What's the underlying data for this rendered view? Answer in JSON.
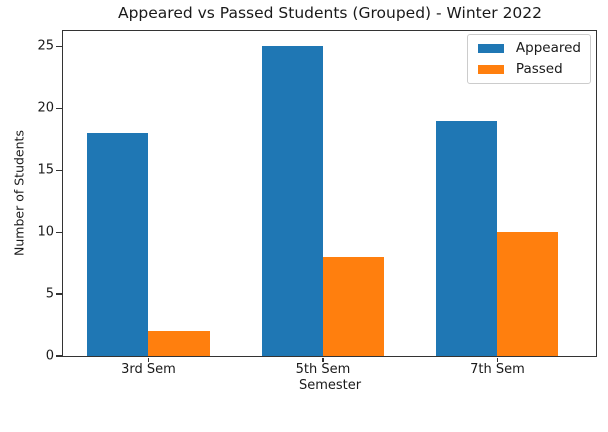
{
  "chart_data": {
    "type": "bar",
    "title": "Appeared vs Passed Students (Grouped) - Winter 2022",
    "xlabel": "Semester",
    "ylabel": "Number of Students",
    "categories": [
      "3rd Sem",
      "5th Sem",
      "7th Sem"
    ],
    "series": [
      {
        "name": "Appeared",
        "color": "#1f77b4",
        "values": [
          18,
          25,
          19
        ]
      },
      {
        "name": "Passed",
        "color": "#ff7f0e",
        "values": [
          2,
          8,
          10
        ]
      }
    ],
    "yticks": [
      0,
      5,
      10,
      15,
      20,
      25
    ],
    "ylim": [
      0,
      26.25
    ],
    "grid": false,
    "plot_background": "#ffffff",
    "legend": {
      "position": "upper-right",
      "entries": [
        "Appeared",
        "Passed"
      ]
    }
  }
}
